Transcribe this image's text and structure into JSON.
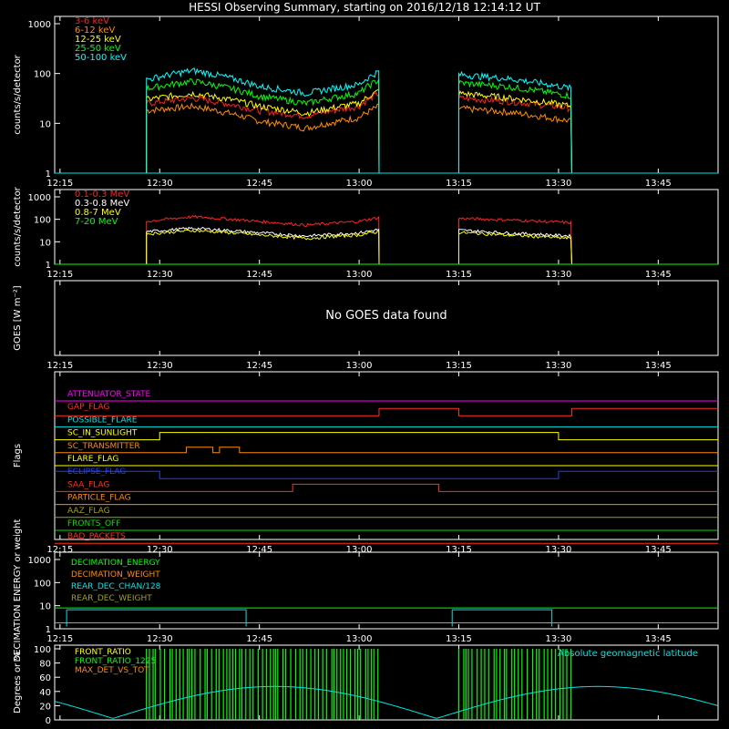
{
  "title": "HESSI Observing Summary, starting on 2016/12/18 12:14:12 UT",
  "time_ticks": [
    "12:15",
    "12:30",
    "12:45",
    "13:00",
    "13:15",
    "13:30",
    "13:45"
  ],
  "chart_data": [
    {
      "id": "lowE",
      "type": "line",
      "ylabel": "counts/s/detector",
      "yscale": "log",
      "ylim": [
        1,
        1000
      ],
      "y_ticks": [
        "1",
        "10",
        "100",
        "1000"
      ],
      "xlim": [
        "12:14:12",
        "13:54"
      ],
      "orbit_windows": [
        [
          "12:28",
          "13:03"
        ],
        [
          "13:15",
          "13:32"
        ]
      ],
      "series": [
        {
          "name": "3-6 keV",
          "color": "#ff2020",
          "values": [
            [
              "12:28",
              25
            ],
            [
              "12:35",
              32
            ],
            [
              "12:45",
              18
            ],
            [
              "12:52",
              14
            ],
            [
              "13:00",
              22
            ],
            [
              "13:03",
              40
            ],
            [
              "13:15",
              32
            ],
            [
              "13:22",
              28
            ],
            [
              "13:32",
              20
            ]
          ]
        },
        {
          "name": "6-12 keV",
          "color": "#ff8c00",
          "values": [
            [
              "12:28",
              18
            ],
            [
              "12:35",
              22
            ],
            [
              "12:45",
              11
            ],
            [
              "12:52",
              8
            ],
            [
              "13:00",
              13
            ],
            [
              "13:03",
              22
            ],
            [
              "13:15",
              20
            ],
            [
              "13:22",
              17
            ],
            [
              "13:32",
              11
            ]
          ]
        },
        {
          "name": "12-25 keV",
          "color": "#ffff00",
          "values": [
            [
              "12:28",
              30
            ],
            [
              "12:35",
              40
            ],
            [
              "12:45",
              22
            ],
            [
              "12:52",
              16
            ],
            [
              "13:00",
              25
            ],
            [
              "13:03",
              45
            ],
            [
              "13:15",
              40
            ],
            [
              "13:22",
              33
            ],
            [
              "13:32",
              22
            ]
          ]
        },
        {
          "name": "25-50 keV",
          "color": "#00ff00",
          "values": [
            [
              "12:28",
              50
            ],
            [
              "12:35",
              70
            ],
            [
              "12:45",
              35
            ],
            [
              "12:52",
              25
            ],
            [
              "13:00",
              40
            ],
            [
              "13:03",
              75
            ],
            [
              "13:15",
              65
            ],
            [
              "13:22",
              55
            ],
            [
              "13:32",
              35
            ]
          ]
        },
        {
          "name": "50-100 keV",
          "color": "#00ffff",
          "values": [
            [
              "12:28",
              75
            ],
            [
              "12:35",
              115
            ],
            [
              "12:45",
              55
            ],
            [
              "12:52",
              40
            ],
            [
              "13:00",
              60
            ],
            [
              "13:03",
              110
            ],
            [
              "13:15",
              95
            ],
            [
              "13:22",
              80
            ],
            [
              "13:32",
              50
            ]
          ]
        }
      ]
    },
    {
      "id": "highE",
      "type": "line",
      "ylabel": "counts/s/detector",
      "yscale": "log",
      "ylim": [
        1,
        1000
      ],
      "y_ticks": [
        "1",
        "10",
        "100",
        "1000"
      ],
      "series": [
        {
          "name": "0.1-0.3 MeV",
          "color": "#ff2020",
          "values": [
            [
              "12:28",
              80
            ],
            [
              "12:35",
              130
            ],
            [
              "12:45",
              80
            ],
            [
              "12:52",
              55
            ],
            [
              "13:00",
              80
            ],
            [
              "13:03",
              120
            ],
            [
              "13:15",
              110
            ],
            [
              "13:22",
              95
            ],
            [
              "13:32",
              70
            ]
          ]
        },
        {
          "name": "0.3-0.8 MeV",
          "color": "#ffffff",
          "values": [
            [
              "12:28",
              28
            ],
            [
              "12:35",
              40
            ],
            [
              "12:45",
              25
            ],
            [
              "12:52",
              18
            ],
            [
              "13:00",
              25
            ],
            [
              "13:03",
              35
            ],
            [
              "13:15",
              33
            ],
            [
              "13:22",
              25
            ],
            [
              "13:32",
              18
            ]
          ]
        },
        {
          "name": "0.8-7 MeV",
          "color": "#ffff00",
          "values": [
            [
              "12:28",
              22
            ],
            [
              "12:35",
              32
            ],
            [
              "12:45",
              20
            ],
            [
              "12:52",
              14
            ],
            [
              "13:00",
              20
            ],
            [
              "13:03",
              28
            ],
            [
              "13:15",
              26
            ],
            [
              "13:22",
              20
            ],
            [
              "13:32",
              14
            ]
          ]
        },
        {
          "name": "7-20 MeV",
          "color": "#00ff00",
          "values": [
            [
              "12:28",
              1
            ],
            [
              "13:32",
              1
            ]
          ]
        }
      ]
    },
    {
      "id": "goes",
      "type": "line",
      "ylabel": "GOES [W m⁻²]",
      "message": "No GOES data found"
    },
    {
      "id": "flags",
      "type": "line",
      "ylabel": "Flags",
      "series": [
        {
          "name": "ATTENUATOR_STATE",
          "color": "#ff00ff"
        },
        {
          "name": "GAP_FLAG",
          "color": "#ff3020"
        },
        {
          "name": "POSSIBLE_FLARE",
          "color": "#00e5e5"
        },
        {
          "name": "SC_IN_SUNLIGHT",
          "color": "#ffff00"
        },
        {
          "name": "SC_TRANSMITTER",
          "color": "#ff8c00"
        },
        {
          "name": "FLARE_FLAG",
          "color": "#ffff00"
        },
        {
          "name": "ECLIPSE_FLAG",
          "color": "#2040ff"
        },
        {
          "name": "SAA_FLAG",
          "color": "#ff3020"
        },
        {
          "name": "PARTICLE_FLAG",
          "color": "#ff8c00"
        },
        {
          "name": "AAZ_FLAG",
          "color": "#a0a020"
        },
        {
          "name": "FRONTS_OFF",
          "color": "#00e000"
        },
        {
          "name": "BAD_PACKETS",
          "color": "#ff3020"
        }
      ]
    },
    {
      "id": "decimation",
      "type": "line",
      "ylabel": "DECIMATION ENERGY or weight",
      "yscale": "log",
      "ylim": [
        1,
        1000
      ],
      "y_ticks": [
        "1",
        "10",
        "100",
        "1000"
      ],
      "series": [
        {
          "name": "DECIMATION_ENERGY",
          "color": "#00ff00"
        },
        {
          "name": "DECIMATION_WEIGHT",
          "color": "#ff8c00"
        },
        {
          "name": "REAR_DEC_CHAN/128",
          "color": "#00e5e5"
        },
        {
          "name": "REAR_DEC_WEIGHT",
          "color": "#a0a020"
        }
      ]
    },
    {
      "id": "ratios",
      "type": "line",
      "ylabel": "Degrees or %",
      "ylim": [
        0,
        100
      ],
      "y_ticks": [
        "0",
        "20",
        "40",
        "60",
        "80",
        "100"
      ],
      "series": [
        {
          "name": "FRONT_RATIO",
          "color": "#ffff00"
        },
        {
          "name": "FRONT_RATIO_1225",
          "color": "#00ff00"
        },
        {
          "name": "MAX_DET_VS_TOT",
          "color": "#ff8c00"
        },
        {
          "name": "Absolute geomagnetic latitude",
          "color": "#00e5e5"
        }
      ]
    }
  ]
}
